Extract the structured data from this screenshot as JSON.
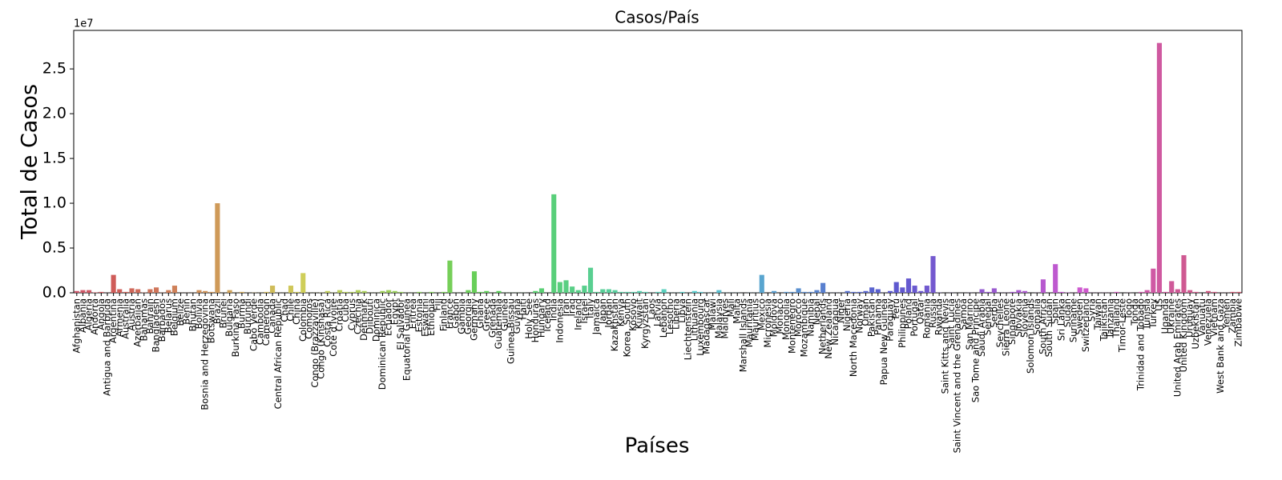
{
  "chart_data": {
    "type": "bar",
    "title": "Casos/País",
    "xlabel": "Países",
    "ylabel": "Total de Casos",
    "offset_label": "1e7",
    "palette": "husl",
    "categories": [
      "Afghanistan",
      "Albania",
      "Algeria",
      "Andorra",
      "Angola",
      "Antigua and Barbuda",
      "Argentina",
      "Armenia",
      "Australia",
      "Austria",
      "Azerbaijan",
      "Bahamas",
      "Bahrain",
      "Bangladesh",
      "Barbados",
      "Belarus",
      "Belgium",
      "Belize",
      "Benin",
      "Bhutan",
      "Bolivia",
      "Bosnia and Herzegovina",
      "Botswana",
      "Brazil",
      "Brunei",
      "Bulgaria",
      "Burkina Faso",
      "Burma",
      "Burundi",
      "Cabo Verde",
      "Cambodia",
      "Cameroon",
      "Canada",
      "Central African Republic",
      "Chad",
      "Chile",
      "China",
      "Colombia",
      "Comoros",
      "Congo (Brazzaville)",
      "Congo (Kinshasa)",
      "Costa Rica",
      "Cote d'Ivoire",
      "Croatia",
      "Cuba",
      "Cyprus",
      "Czechia",
      "Denmark",
      "Djibouti",
      "Dominica",
      "Dominican Republic",
      "Ecuador",
      "Egypt",
      "El Salvador",
      "Equatorial Guinea",
      "Eritrea",
      "Estonia",
      "Eswatini",
      "Ethiopia",
      "Fiji",
      "Finland",
      "France",
      "Gabon",
      "Gambia",
      "Georgia",
      "Germany",
      "Ghana",
      "Greece",
      "Grenada",
      "Guatemala",
      "Guinea",
      "Guinea-Bissau",
      "Guyana",
      "Haiti",
      "Holy See",
      "Honduras",
      "Hungary",
      "Iceland",
      "India",
      "Indonesia",
      "Iran",
      "Iraq",
      "Ireland",
      "Israel",
      "Italy",
      "Jamaica",
      "Japan",
      "Jordan",
      "Kazakhstan",
      "Kenya",
      "Korea, South",
      "Kosovo",
      "Kuwait",
      "Kyrgyzstan",
      "Laos",
      "Latvia",
      "Lebanon",
      "Lesotho",
      "Liberia",
      "Libya",
      "Liechtenstein",
      "Lithuania",
      "Luxembourg",
      "Madagascar",
      "Malawi",
      "Malaysia",
      "Maldives",
      "Mali",
      "Malta",
      "Marshall Islands",
      "Mauritania",
      "Mauritius",
      "Mexico",
      "Micronesia",
      "Moldova",
      "Monaco",
      "Mongolia",
      "Montenegro",
      "Morocco",
      "Mozambique",
      "Namibia",
      "Nepal",
      "Netherlands",
      "New Zealand",
      "Nicaragua",
      "Niger",
      "Nigeria",
      "North Macedonia",
      "Norway",
      "Oman",
      "Pakistan",
      "Panama",
      "Papua New Guinea",
      "Paraguay",
      "Peru",
      "Philippines",
      "Poland",
      "Portugal",
      "Qatar",
      "Romania",
      "Russia",
      "Rwanda",
      "Saint Kitts and Nevis",
      "Saint Lucia",
      "Saint Vincent and the Grenadines",
      "Samoa",
      "San Marino",
      "Sao Tome and Principe",
      "Saudi Arabia",
      "Senegal",
      "Serbia",
      "Seychelles",
      "Sierra Leone",
      "Singapore",
      "Slovakia",
      "Slovenia",
      "Solomon Islands",
      "Somalia",
      "South Africa",
      "South Sudan",
      "Spain",
      "Sri Lanka",
      "Sudan",
      "Suriname",
      "Sweden",
      "Switzerland",
      "Syria",
      "Taiwan",
      "Tajikistan",
      "Tanzania",
      "Thailand",
      "Timor-Leste",
      "Togo",
      "Tonga",
      "Trinidad and Tobago",
      "Tunisia",
      "Turkey",
      "US",
      "Uganda",
      "Ukraine",
      "United Arab Emirates",
      "United Kingdom",
      "Uruguay",
      "Uzbekistan",
      "Vanuatu",
      "Venezuela",
      "Vietnam",
      "West Bank and Gaza",
      "Yemen",
      "Zambia",
      "Zimbabwe"
    ],
    "values": [
      0.02,
      0.03,
      0.03,
      0.005,
      0.01,
      0.001,
      0.2,
      0.04,
      0.01,
      0.05,
      0.04,
      0.003,
      0.04,
      0.06,
      0.002,
      0.03,
      0.08,
      0.001,
      0.001,
      0.001,
      0.03,
      0.02,
      0.01,
      1.0,
      0.001,
      0.03,
      0.001,
      0.01,
      0.001,
      0.002,
      0.001,
      0.01,
      0.08,
      0.001,
      0.001,
      0.08,
      0.01,
      0.22,
      0.001,
      0.001,
      0.002,
      0.02,
      0.002,
      0.03,
      0.01,
      0.01,
      0.03,
      0.02,
      0.001,
      0.001,
      0.02,
      0.03,
      0.02,
      0.01,
      0.001,
      0.001,
      0.01,
      0.001,
      0.01,
      0.001,
      0.01,
      0.36,
      0.001,
      0.001,
      0.03,
      0.24,
      0.01,
      0.02,
      0.001,
      0.02,
      0.001,
      0.001,
      0.001,
      0.001,
      0,
      0.02,
      0.05,
      0.001,
      1.1,
      0.12,
      0.14,
      0.07,
      0.03,
      0.08,
      0.28,
      0.01,
      0.04,
      0.04,
      0.03,
      0.01,
      0.01,
      0.01,
      0.02,
      0.01,
      0.001,
      0.01,
      0.04,
      0.001,
      0.001,
      0.01,
      0.001,
      0.02,
      0.01,
      0.001,
      0.001,
      0.03,
      0.001,
      0.001,
      0.001,
      0,
      0.001,
      0.001,
      0.2,
      0,
      0.02,
      0,
      0.01,
      0.01,
      0.05,
      0.01,
      0.01,
      0.03,
      0.11,
      0.001,
      0.001,
      0.001,
      0.02,
      0.01,
      0.01,
      0.02,
      0.06,
      0.04,
      0.001,
      0.02,
      0.12,
      0.06,
      0.16,
      0.08,
      0.02,
      0.08,
      0.41,
      0.002,
      0,
      0.001,
      0,
      0,
      0.001,
      0,
      0.04,
      0.01,
      0.05,
      0.001,
      0.001,
      0.01,
      0.03,
      0.02,
      0,
      0.001,
      0.15,
      0.001,
      0.32,
      0.01,
      0.003,
      0.001,
      0.06,
      0.05,
      0.001,
      0.001,
      0.001,
      0.001,
      0.01,
      0,
      0.001,
      0,
      0.01,
      0.03,
      0.27,
      2.79,
      0.01,
      0.13,
      0.04,
      0.42,
      0.03,
      0.01,
      0,
      0.02,
      0.01,
      0.001,
      0.001,
      0.01,
      0.01
    ],
    "ylim": [
      0,
      2.93
    ],
    "yticks": [
      {
        "value": 0,
        "label": "0.0"
      },
      0.5,
      {
        "value": 1,
        "label": "1.0"
      },
      1.5,
      {
        "value": 2,
        "label": "2.0"
      },
      2.5
    ]
  }
}
